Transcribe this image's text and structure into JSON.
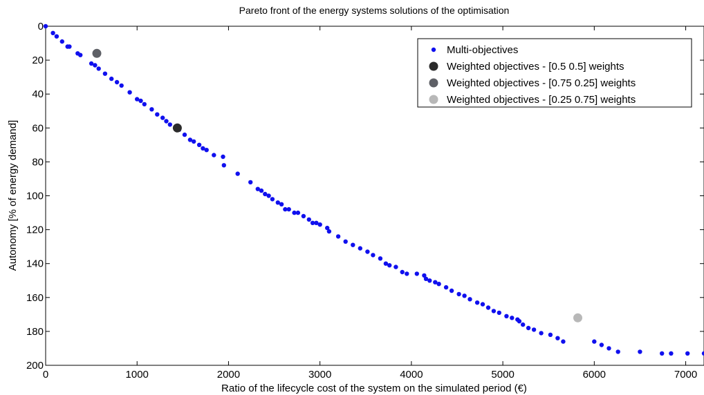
{
  "chart_data": {
    "type": "scatter",
    "title": "Pareto front of the energy systems solutions of the optimisation",
    "xlabel": "Ratio of the lifecycle cost of the system on the simulated period (€)",
    "ylabel": "Autonomy [% of energy demand]",
    "xlim": [
      0,
      7200
    ],
    "ylim": [
      0,
      200
    ],
    "y_reversed": true,
    "xticks": [
      0,
      1000,
      2000,
      3000,
      4000,
      5000,
      6000,
      7000
    ],
    "yticks": [
      0,
      20,
      40,
      60,
      80,
      100,
      120,
      140,
      160,
      180,
      200
    ],
    "grid": false,
    "legend_position": "top-right",
    "series": [
      {
        "name": "Multi-objectives",
        "color": "#1010ee",
        "marker": "small-dot",
        "points": [
          [
            0,
            0
          ],
          [
            80,
            4
          ],
          [
            120,
            6
          ],
          [
            180,
            9
          ],
          [
            240,
            12
          ],
          [
            260,
            12
          ],
          [
            350,
            16
          ],
          [
            380,
            17
          ],
          [
            500,
            22
          ],
          [
            540,
            23
          ],
          [
            580,
            25
          ],
          [
            650,
            28
          ],
          [
            720,
            31
          ],
          [
            780,
            33
          ],
          [
            830,
            35
          ],
          [
            920,
            39
          ],
          [
            1000,
            43
          ],
          [
            1040,
            44
          ],
          [
            1080,
            46
          ],
          [
            1160,
            49
          ],
          [
            1220,
            52
          ],
          [
            1280,
            54
          ],
          [
            1320,
            56
          ],
          [
            1360,
            58
          ],
          [
            1420,
            60
          ],
          [
            1460,
            61
          ],
          [
            1520,
            64
          ],
          [
            1580,
            67
          ],
          [
            1620,
            68
          ],
          [
            1680,
            70
          ],
          [
            1720,
            72
          ],
          [
            1760,
            73
          ],
          [
            1840,
            76
          ],
          [
            1940,
            77
          ],
          [
            1950,
            82
          ],
          [
            2100,
            87
          ],
          [
            2240,
            92
          ],
          [
            2320,
            96
          ],
          [
            2360,
            97
          ],
          [
            2400,
            99
          ],
          [
            2440,
            100
          ],
          [
            2480,
            102
          ],
          [
            2540,
            104
          ],
          [
            2580,
            105
          ],
          [
            2620,
            108
          ],
          [
            2660,
            108
          ],
          [
            2720,
            110
          ],
          [
            2760,
            110
          ],
          [
            2820,
            112
          ],
          [
            2880,
            114
          ],
          [
            2920,
            116
          ],
          [
            2960,
            116
          ],
          [
            3000,
            117
          ],
          [
            3080,
            119
          ],
          [
            3100,
            121
          ],
          [
            3200,
            124
          ],
          [
            3280,
            127
          ],
          [
            3360,
            129
          ],
          [
            3440,
            131
          ],
          [
            3520,
            133
          ],
          [
            3580,
            135
          ],
          [
            3660,
            137
          ],
          [
            3720,
            140
          ],
          [
            3760,
            141
          ],
          [
            3830,
            142
          ],
          [
            3900,
            145
          ],
          [
            3950,
            146
          ],
          [
            4060,
            146
          ],
          [
            4140,
            147
          ],
          [
            4160,
            149
          ],
          [
            4200,
            150
          ],
          [
            4260,
            151
          ],
          [
            4300,
            152
          ],
          [
            4380,
            154
          ],
          [
            4440,
            156
          ],
          [
            4520,
            158
          ],
          [
            4580,
            159
          ],
          [
            4640,
            161
          ],
          [
            4720,
            163
          ],
          [
            4780,
            164
          ],
          [
            4840,
            166
          ],
          [
            4900,
            168
          ],
          [
            4960,
            169
          ],
          [
            5040,
            171
          ],
          [
            5100,
            172
          ],
          [
            5160,
            173
          ],
          [
            5180,
            174
          ],
          [
            5220,
            176
          ],
          [
            5280,
            178
          ],
          [
            5340,
            179
          ],
          [
            5420,
            181
          ],
          [
            5520,
            182
          ],
          [
            5600,
            184
          ],
          [
            5660,
            186
          ],
          [
            6000,
            186
          ],
          [
            6080,
            188
          ],
          [
            6160,
            190
          ],
          [
            6260,
            192
          ],
          [
            6500,
            192
          ],
          [
            6740,
            193
          ],
          [
            6840,
            193
          ],
          [
            7020,
            193
          ],
          [
            7200,
            193
          ]
        ]
      },
      {
        "name": "Weighted objectives - [0.5 0.5] weights",
        "color": "#2b2b2b",
        "marker": "large-dot",
        "points": [
          [
            1440,
            60
          ]
        ]
      },
      {
        "name": "Weighted objectives - [0.75 0.25] weights",
        "color": "#5e6066",
        "marker": "large-dot",
        "points": [
          [
            560,
            16
          ]
        ]
      },
      {
        "name": "Weighted objectives - [0.25 0.75] weights",
        "color": "#b8b8b8",
        "marker": "large-dot",
        "points": [
          [
            5820,
            172
          ]
        ]
      }
    ]
  }
}
